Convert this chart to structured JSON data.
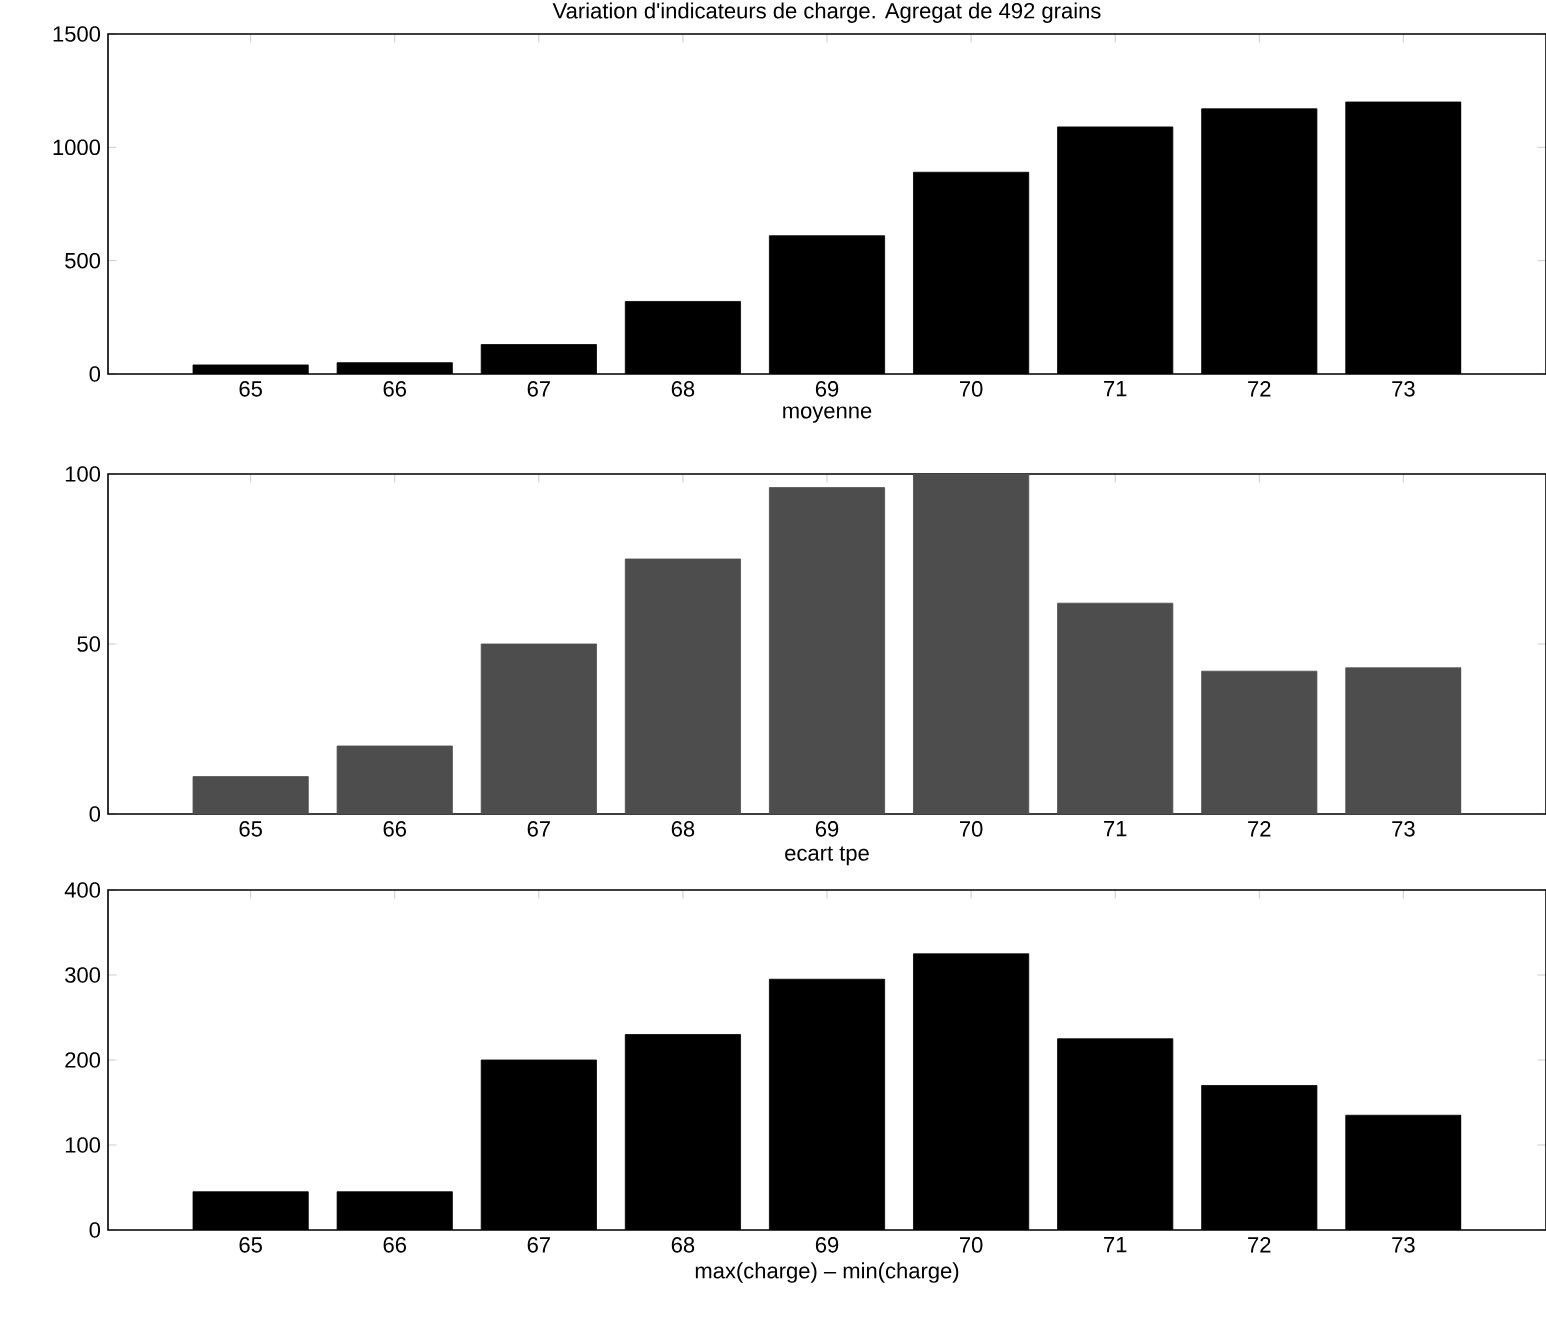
{
  "chart_data": [
    {
      "type": "bar",
      "title": "Variation d'indicateurs de charge. Agregat de 492 grains",
      "xlabel": "moyenne",
      "categories": [
        "65",
        "66",
        "67",
        "68",
        "69",
        "70",
        "71",
        "72",
        "73"
      ],
      "values": [
        40,
        50,
        130,
        320,
        610,
        890,
        1090,
        1170,
        1200
      ],
      "color": "#000000",
      "ylim": [
        0,
        1500
      ],
      "yticks": [
        0,
        500,
        1000,
        1500
      ],
      "grid": false
    },
    {
      "type": "bar",
      "xlabel": "ecart tpe",
      "categories": [
        "65",
        "66",
        "67",
        "68",
        "69",
        "70",
        "71",
        "72",
        "73"
      ],
      "values": [
        11,
        20,
        50,
        75,
        96,
        100,
        62,
        42,
        43
      ],
      "color": "#4d4d4d",
      "ylim": [
        0,
        100
      ],
      "yticks": [
        0,
        50,
        100
      ],
      "grid": false
    },
    {
      "type": "bar",
      "xlabel": "max(charge) – min(charge)",
      "categories": [
        "65",
        "66",
        "67",
        "68",
        "69",
        "70",
        "71",
        "72",
        "73"
      ],
      "values": [
        45,
        45,
        200,
        230,
        295,
        325,
        225,
        170,
        135
      ],
      "color": "#000000",
      "ylim": [
        0,
        400
      ],
      "yticks": [
        0,
        100,
        200,
        300,
        400
      ],
      "grid": false
    }
  ]
}
